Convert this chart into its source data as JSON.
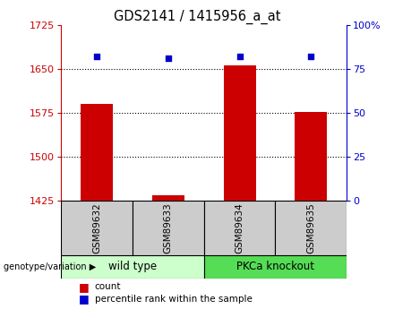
{
  "title": "GDS2141 / 1415956_a_at",
  "samples": [
    "GSM89632",
    "GSM89633",
    "GSM89634",
    "GSM89635"
  ],
  "bar_values": [
    1590,
    1435,
    1655,
    1577
  ],
  "percentile_values": [
    82,
    81,
    82,
    82
  ],
  "ylim_left": [
    1425,
    1725
  ],
  "ylim_right": [
    0,
    100
  ],
  "yticks_left": [
    1425,
    1500,
    1575,
    1650,
    1725
  ],
  "yticks_right": [
    0,
    25,
    50,
    75,
    100
  ],
  "ytick_labels_right": [
    "0",
    "25",
    "50",
    "75",
    "100%"
  ],
  "bar_color": "#cc0000",
  "dot_color": "#0000cc",
  "bar_width": 0.45,
  "groups": [
    {
      "label": "wild type",
      "samples": [
        0,
        1
      ],
      "color": "#ccffcc"
    },
    {
      "label": "PKCa knockout",
      "samples": [
        2,
        3
      ],
      "color": "#55dd55"
    }
  ],
  "legend_count_label": "count",
  "legend_percentile_label": "percentile rank within the sample",
  "axis_color_left": "#cc0000",
  "axis_color_right": "#0000cc",
  "sample_area_color": "#cccccc",
  "gridline_ticks": [
    1500,
    1575,
    1650
  ]
}
